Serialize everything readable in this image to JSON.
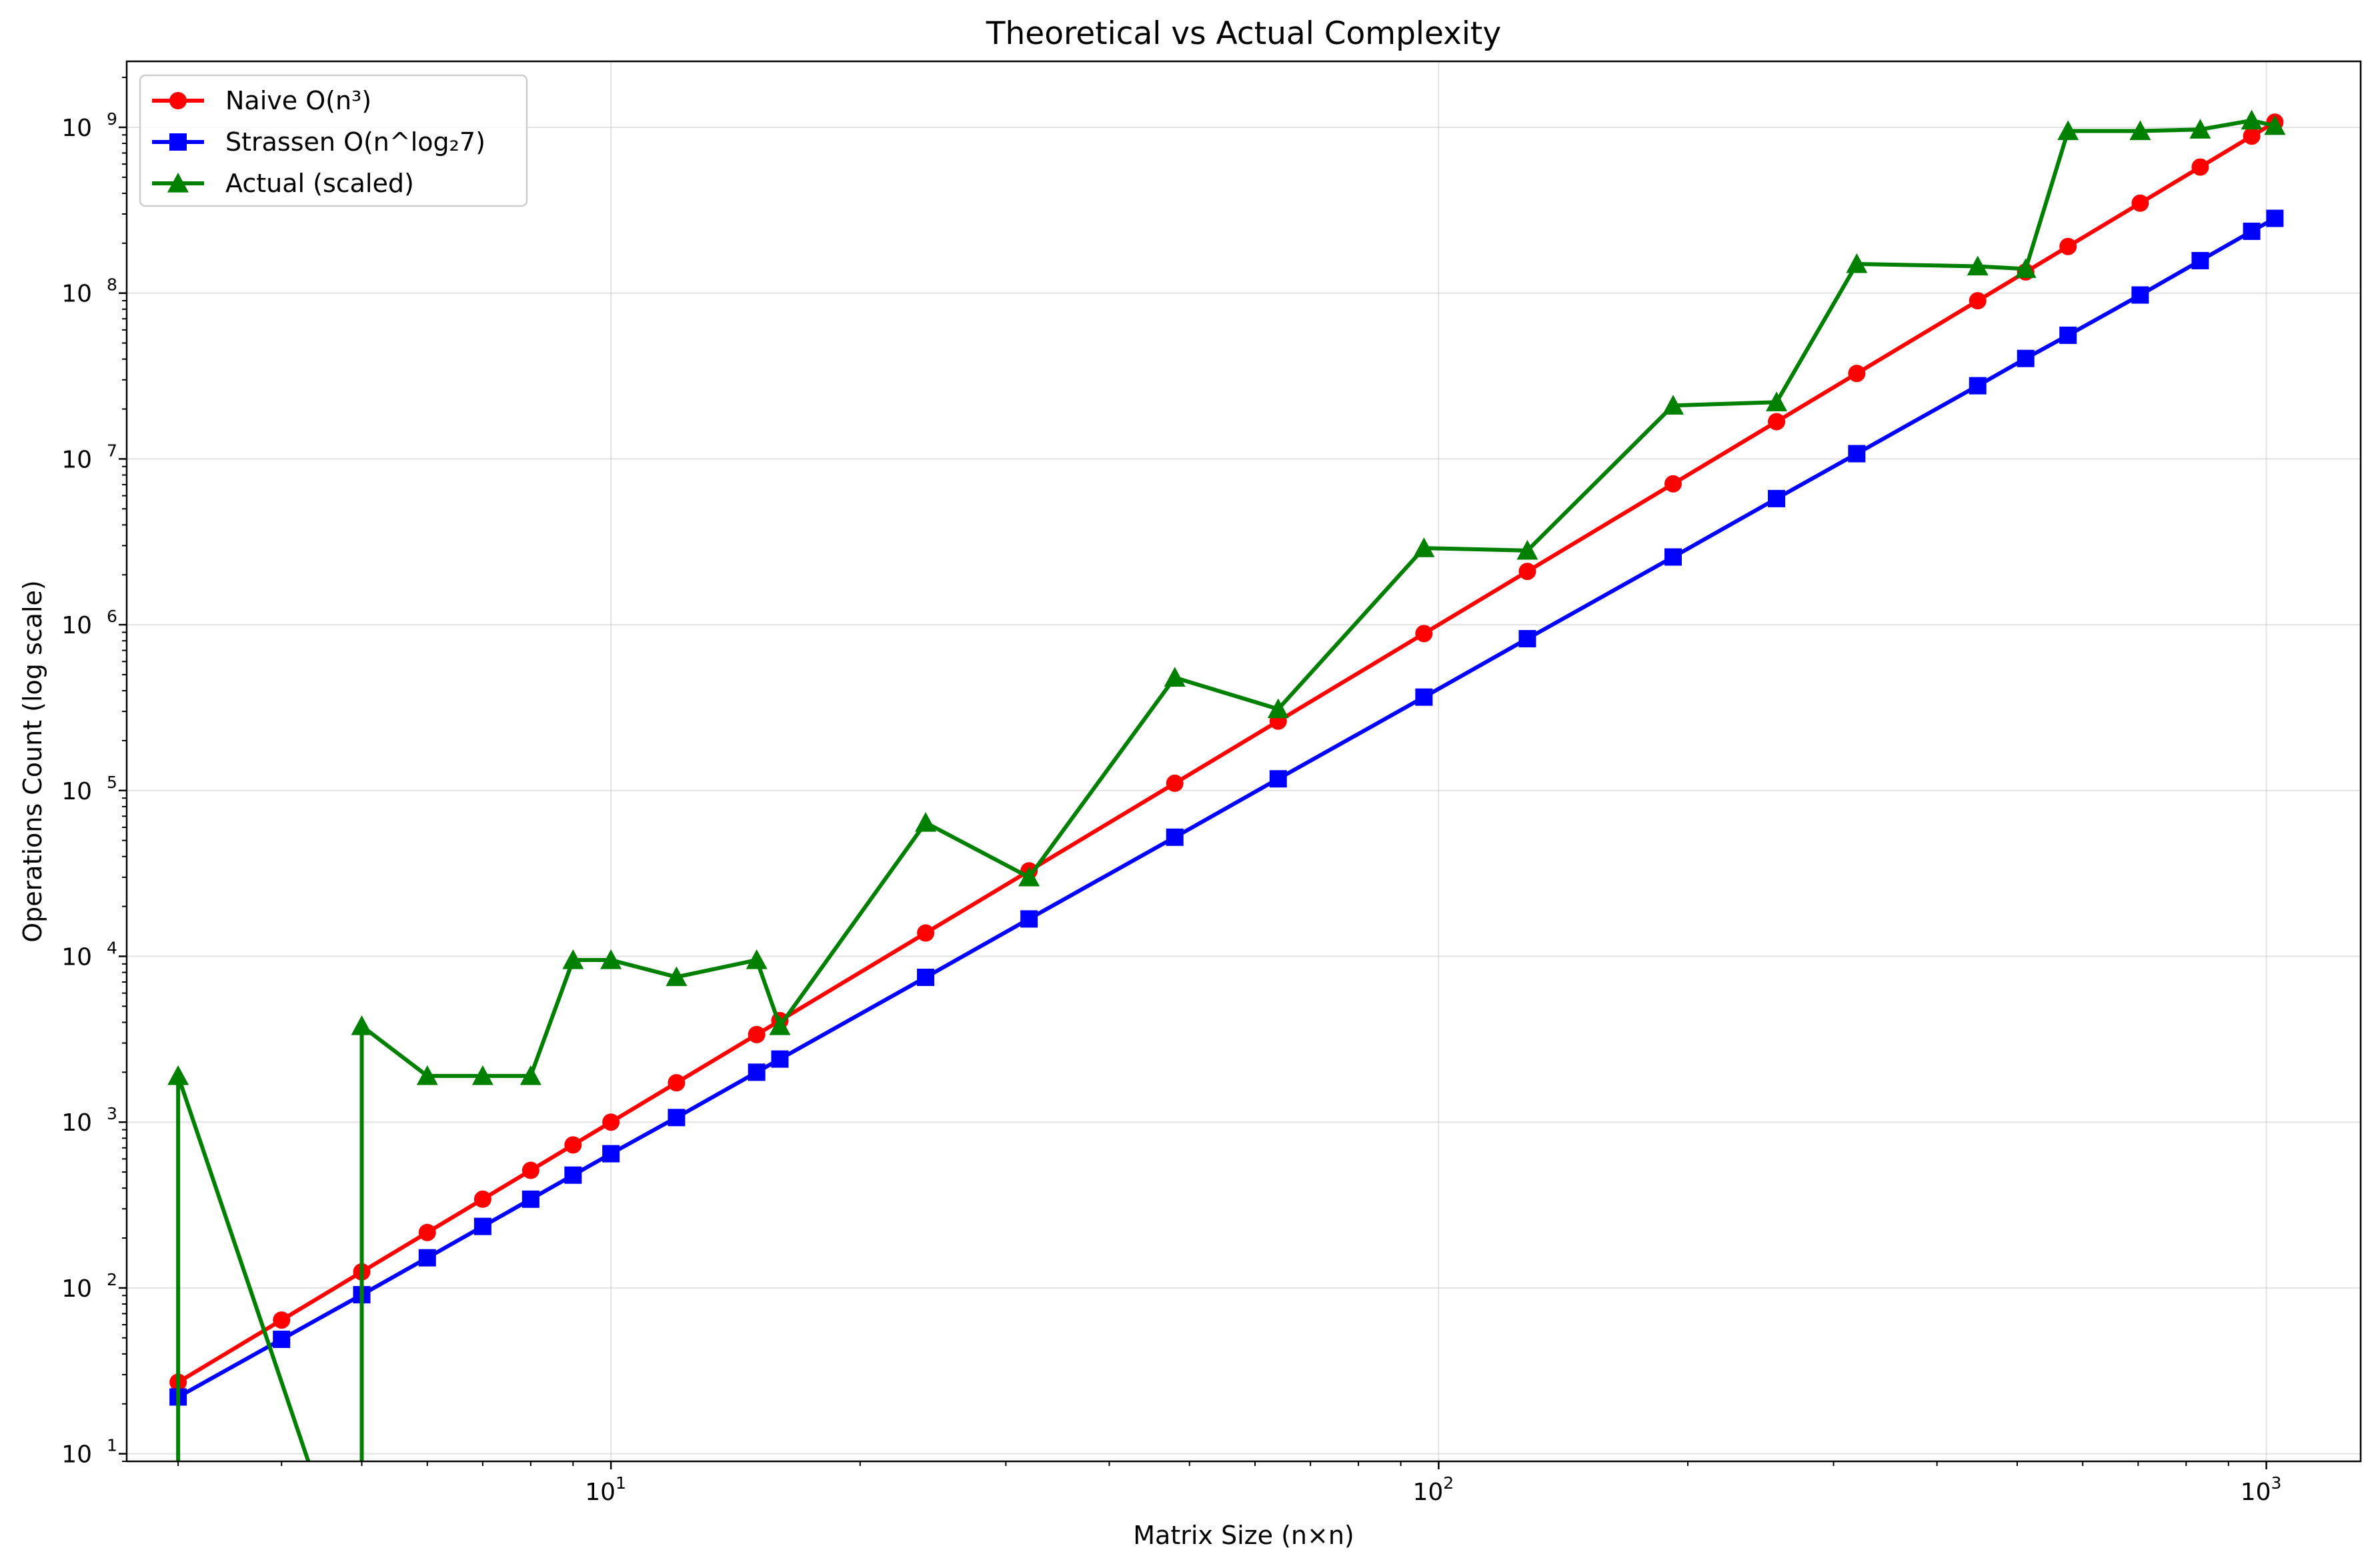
{
  "chart_data": {
    "type": "line",
    "title": "Theoretical vs Actual Complexity",
    "xlabel": "Matrix Size (n×n)",
    "ylabel": "Operations Count (log scale)",
    "xscale": "log",
    "yscale": "log",
    "xlim": [
      2.6,
      1300
    ],
    "ylim": [
      9,
      2500000000
    ],
    "x_ticks": [
      {
        "value": 10,
        "base": "10",
        "exp": "1"
      },
      {
        "value": 100,
        "base": "10",
        "exp": "2"
      },
      {
        "value": 1000,
        "base": "10",
        "exp": "3"
      }
    ],
    "y_ticks": [
      {
        "value": 10,
        "base": "10",
        "exp": "1"
      },
      {
        "value": 100,
        "base": "10",
        "exp": "2"
      },
      {
        "value": 1000,
        "base": "10",
        "exp": "3"
      },
      {
        "value": 10000,
        "base": "10",
        "exp": "4"
      },
      {
        "value": 100000,
        "base": "10",
        "exp": "5"
      },
      {
        "value": 1000000,
        "base": "10",
        "exp": "6"
      },
      {
        "value": 10000000,
        "base": "10",
        "exp": "7"
      },
      {
        "value": 100000000,
        "base": "10",
        "exp": "8"
      },
      {
        "value": 1000000000,
        "base": "10",
        "exp": "9"
      }
    ],
    "grid": true,
    "legend_position": "top-left",
    "series": [
      {
        "name": "Naive O(n³)",
        "color": "#ff0000",
        "marker": "circle",
        "x": [
          3,
          4,
          5,
          6,
          7,
          8,
          9,
          10,
          12,
          15,
          16,
          24,
          32,
          48,
          64,
          96,
          128,
          192,
          256,
          320,
          448,
          512,
          576,
          704,
          832,
          960,
          1024
        ],
        "y": [
          27,
          64,
          125,
          216,
          343,
          512,
          729,
          1000,
          1728,
          3375,
          4096,
          13824,
          32768,
          110592,
          262144,
          884736,
          2097152,
          7077888,
          16777216,
          32768000,
          89915392,
          134217728,
          191102976,
          348913664,
          575930368,
          884736000,
          1073741824
        ]
      },
      {
        "name": "Strassen O(n^log₂7)",
        "color": "#0000ff",
        "marker": "square",
        "x": [
          3,
          4,
          5,
          6,
          7,
          8,
          9,
          10,
          12,
          15,
          16,
          24,
          32,
          48,
          64,
          96,
          128,
          192,
          256,
          320,
          448,
          512,
          576,
          704,
          832,
          960,
          1024
        ],
        "y": [
          22,
          49,
          91,
          152,
          235,
          343,
          479,
          645,
          1066,
          2000,
          2401,
          7468,
          16807,
          52280,
          117649,
          365916,
          823543,
          2561412,
          5764801,
          10757060,
          27636200,
          40353607,
          55700000,
          97400000,
          157000000,
          236000000,
          282475249
        ]
      },
      {
        "name": "Actual (scaled)",
        "color": "#008000",
        "marker": "triangle",
        "x": [
          3,
          3,
          5,
          5,
          6,
          7,
          8,
          9,
          10,
          12,
          15,
          16,
          24,
          32,
          48,
          64,
          96,
          128,
          192,
          256,
          320,
          448,
          512,
          576,
          704,
          832,
          960,
          1024
        ],
        "y": [
          1,
          1900,
          1,
          3800,
          1900,
          1900,
          1900,
          9500,
          9500,
          7500,
          9500,
          3800,
          64000,
          30000,
          480000,
          310000,
          2900000,
          2800000,
          21000000,
          22000000,
          150000000,
          145000000,
          140000000,
          950000000,
          950000000,
          970000000,
          1100000000,
          1020000000
        ]
      }
    ]
  }
}
